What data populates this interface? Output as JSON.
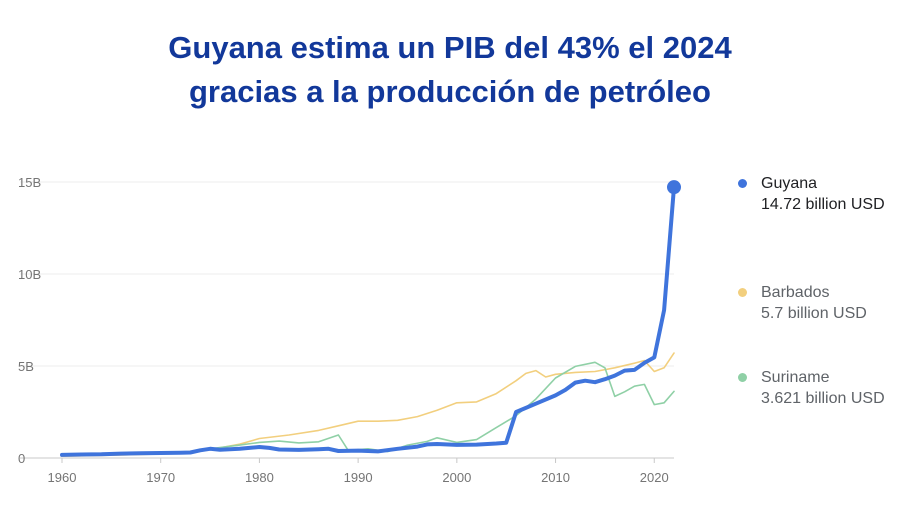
{
  "title_line1": "Guyana estima un PIB del 43% el 2024",
  "title_line2": "gracias a la producción de petróleo",
  "chart_data": {
    "type": "line",
    "title": "Guyana estima un PIB del 43% el 2024 gracias a la producción de petróleo",
    "xlabel": "",
    "ylabel": "",
    "xlim": [
      1960,
      2022
    ],
    "ylim": [
      0,
      15
    ],
    "x_ticks": [
      1960,
      1970,
      1980,
      1990,
      2000,
      2010,
      2020
    ],
    "x_tick_labels": [
      "1960",
      "1970",
      "1980",
      "1990",
      "2000",
      "2010",
      "2020"
    ],
    "y_ticks": [
      0,
      5,
      10,
      15
    ],
    "y_tick_labels": [
      "0",
      "5B",
      "10B",
      "15B"
    ],
    "grid": true,
    "legend_position": "right",
    "series": [
      {
        "name": "Guyana",
        "value_label": "14.72 billion USD",
        "color": "#3f74dc",
        "points": [
          [
            1960,
            0.17
          ],
          [
            1962,
            0.19
          ],
          [
            1964,
            0.2
          ],
          [
            1966,
            0.24
          ],
          [
            1968,
            0.26
          ],
          [
            1970,
            0.27
          ],
          [
            1972,
            0.28
          ],
          [
            1973,
            0.3
          ],
          [
            1974,
            0.42
          ],
          [
            1975,
            0.5
          ],
          [
            1976,
            0.45
          ],
          [
            1978,
            0.5
          ],
          [
            1980,
            0.6
          ],
          [
            1981,
            0.55
          ],
          [
            1982,
            0.46
          ],
          [
            1984,
            0.44
          ],
          [
            1986,
            0.48
          ],
          [
            1987,
            0.5
          ],
          [
            1988,
            0.38
          ],
          [
            1990,
            0.4
          ],
          [
            1992,
            0.36
          ],
          [
            1994,
            0.5
          ],
          [
            1996,
            0.62
          ],
          [
            1997,
            0.74
          ],
          [
            1998,
            0.76
          ],
          [
            2000,
            0.71
          ],
          [
            2002,
            0.73
          ],
          [
            2004,
            0.79
          ],
          [
            2005,
            0.83
          ],
          [
            2006,
            2.5
          ],
          [
            2008,
            2.95
          ],
          [
            2010,
            3.4
          ],
          [
            2011,
            3.7
          ],
          [
            2012,
            4.1
          ],
          [
            2013,
            4.2
          ],
          [
            2014,
            4.12
          ],
          [
            2015,
            4.28
          ],
          [
            2016,
            4.48
          ],
          [
            2017,
            4.75
          ],
          [
            2018,
            4.79
          ],
          [
            2019,
            5.17
          ],
          [
            2020,
            5.47
          ],
          [
            2021,
            8.04
          ],
          [
            2022,
            14.72
          ]
        ]
      },
      {
        "name": "Barbados",
        "value_label": "5.7 billion USD",
        "color": "#f2cf7e",
        "points": [
          [
            1960,
            0.1
          ],
          [
            1965,
            0.15
          ],
          [
            1970,
            0.22
          ],
          [
            1975,
            0.45
          ],
          [
            1978,
            0.75
          ],
          [
            1980,
            1.06
          ],
          [
            1983,
            1.25
          ],
          [
            1986,
            1.5
          ],
          [
            1988,
            1.75
          ],
          [
            1990,
            2.0
          ],
          [
            1992,
            2.0
          ],
          [
            1994,
            2.05
          ],
          [
            1996,
            2.25
          ],
          [
            1998,
            2.6
          ],
          [
            2000,
            3.0
          ],
          [
            2002,
            3.05
          ],
          [
            2004,
            3.5
          ],
          [
            2006,
            4.2
          ],
          [
            2007,
            4.6
          ],
          [
            2008,
            4.75
          ],
          [
            2009,
            4.4
          ],
          [
            2010,
            4.55
          ],
          [
            2012,
            4.65
          ],
          [
            2014,
            4.7
          ],
          [
            2016,
            4.9
          ],
          [
            2018,
            5.15
          ],
          [
            2019,
            5.3
          ],
          [
            2020,
            4.7
          ],
          [
            2021,
            4.9
          ],
          [
            2022,
            5.7
          ]
        ]
      },
      {
        "name": "Suriname",
        "value_label": "3.621 billion USD",
        "color": "#8fd0a6",
        "points": [
          [
            1975,
            0.5
          ],
          [
            1978,
            0.7
          ],
          [
            1980,
            0.85
          ],
          [
            1982,
            0.92
          ],
          [
            1984,
            0.82
          ],
          [
            1986,
            0.88
          ],
          [
            1988,
            1.25
          ],
          [
            1989,
            0.4
          ],
          [
            1991,
            0.5
          ],
          [
            1993,
            0.35
          ],
          [
            1995,
            0.7
          ],
          [
            1997,
            0.9
          ],
          [
            1998,
            1.1
          ],
          [
            2000,
            0.85
          ],
          [
            2002,
            1.0
          ],
          [
            2004,
            1.65
          ],
          [
            2006,
            2.3
          ],
          [
            2008,
            3.2
          ],
          [
            2010,
            4.35
          ],
          [
            2012,
            4.98
          ],
          [
            2014,
            5.2
          ],
          [
            2015,
            4.9
          ],
          [
            2016,
            3.35
          ],
          [
            2017,
            3.6
          ],
          [
            2018,
            3.9
          ],
          [
            2019,
            4.0
          ],
          [
            2020,
            2.9
          ],
          [
            2021,
            3.0
          ],
          [
            2022,
            3.621
          ]
        ]
      }
    ]
  }
}
